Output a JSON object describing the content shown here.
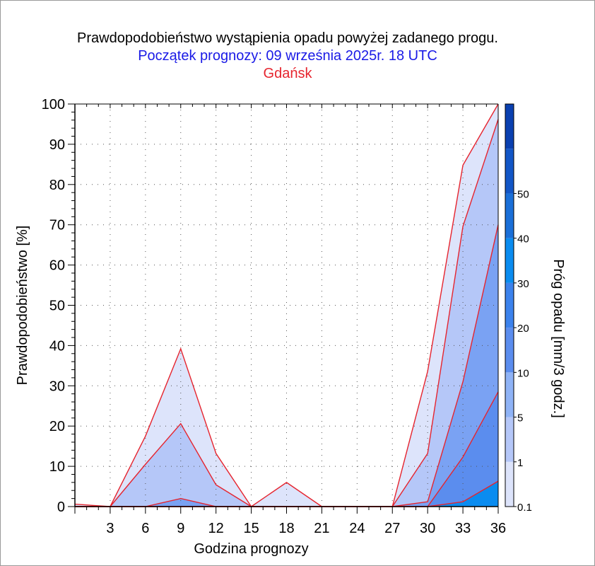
{
  "header": {
    "title": "Prawdopodobieństwo wystąpienia opadu powyżej zadanego progu.",
    "subtitle": "Początek prognozy: 09 września 2025r. 18 UTC",
    "location": "Gdańsk"
  },
  "colors": {
    "title": "#000000",
    "subtitle": "#1a1ae6",
    "location": "#e6242e",
    "line": "#e6242e"
  },
  "chart_data": {
    "type": "area",
    "title": "Prawdopodobieństwo wystąpienia opadu powyżej zadanego progu.",
    "xlabel": "Godzina prognozy",
    "ylabel": "Prawdopodobieństwo [%]",
    "colorbar_label": "Próg opadu [mm/3 godz.]",
    "xlim": [
      0,
      36
    ],
    "ylim": [
      0,
      100
    ],
    "xticks": [
      3,
      6,
      9,
      12,
      15,
      18,
      21,
      24,
      27,
      30,
      33,
      36
    ],
    "yticks": [
      0,
      10,
      20,
      30,
      40,
      50,
      60,
      70,
      80,
      90,
      100
    ],
    "x": [
      0,
      3,
      6,
      9,
      12,
      15,
      18,
      21,
      24,
      27,
      30,
      33,
      36
    ],
    "series": [
      {
        "name": "0.1",
        "color": "#dde4fb",
        "values": [
          0.6,
          0,
          17.5,
          39.2,
          13.2,
          0,
          6.0,
          0,
          0,
          0,
          33.6,
          84.8,
          100
        ]
      },
      {
        "name": "1",
        "color": "#b5c7f8",
        "values": [
          0,
          0,
          10.5,
          20.6,
          5.4,
          0,
          0,
          0,
          0,
          0,
          13.2,
          69.6,
          96.2
        ]
      },
      {
        "name": "5",
        "color": "#7aa2f3",
        "values": [
          0,
          0,
          0,
          2.0,
          0,
          0,
          0,
          0,
          0,
          0,
          1.2,
          31.0,
          70.0
        ]
      },
      {
        "name": "10",
        "color": "#5b8dee",
        "values": [
          0,
          0,
          0,
          0,
          0,
          0,
          0,
          0,
          0,
          0,
          0,
          12.3,
          28.5
        ]
      },
      {
        "name": "20",
        "color": "#0a8cf0",
        "values": [
          0,
          0,
          0,
          0,
          0,
          0,
          0,
          0,
          0,
          0,
          0,
          1.2,
          6.3
        ]
      }
    ],
    "colorbar": {
      "labels": [
        "0.1",
        "1",
        "5",
        "10",
        "20",
        "30",
        "40",
        "50"
      ],
      "colors": [
        "#dde4fb",
        "#b5c7f8",
        "#8fb3f6",
        "#5b8dee",
        "#3c82ec",
        "#0a8cf0",
        "#1a6fd8",
        "#1256c6",
        "#0a40b0"
      ]
    },
    "grid": true,
    "legend": "colorbar-right"
  }
}
